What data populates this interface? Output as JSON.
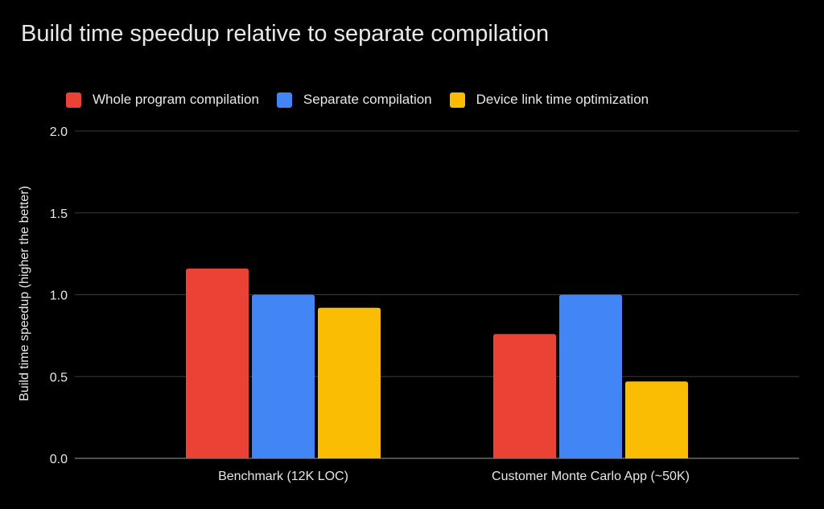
{
  "chart_data": {
    "type": "bar",
    "title": "Build time speedup relative to separate compilation",
    "xlabel": "",
    "ylabel": "Build time speedup (higher the better)",
    "ylim": [
      0,
      2.0
    ],
    "yticks": [
      "0.0",
      "0.5",
      "1.0",
      "1.5",
      "2.0"
    ],
    "grid": true,
    "legend_position": "top",
    "categories": [
      "Benchmark (12K LOC)",
      "Customer Monte Carlo App (~50K)"
    ],
    "series": [
      {
        "name": "Whole program compilation",
        "values": [
          1.16,
          0.76
        ],
        "color": "#ea4335"
      },
      {
        "name": "Separate compilation",
        "values": [
          1.0,
          1.0
        ],
        "color": "#4285f4"
      },
      {
        "name": "Device link time optimization",
        "values": [
          0.92,
          0.47
        ],
        "color": "#fbbc04"
      }
    ]
  }
}
